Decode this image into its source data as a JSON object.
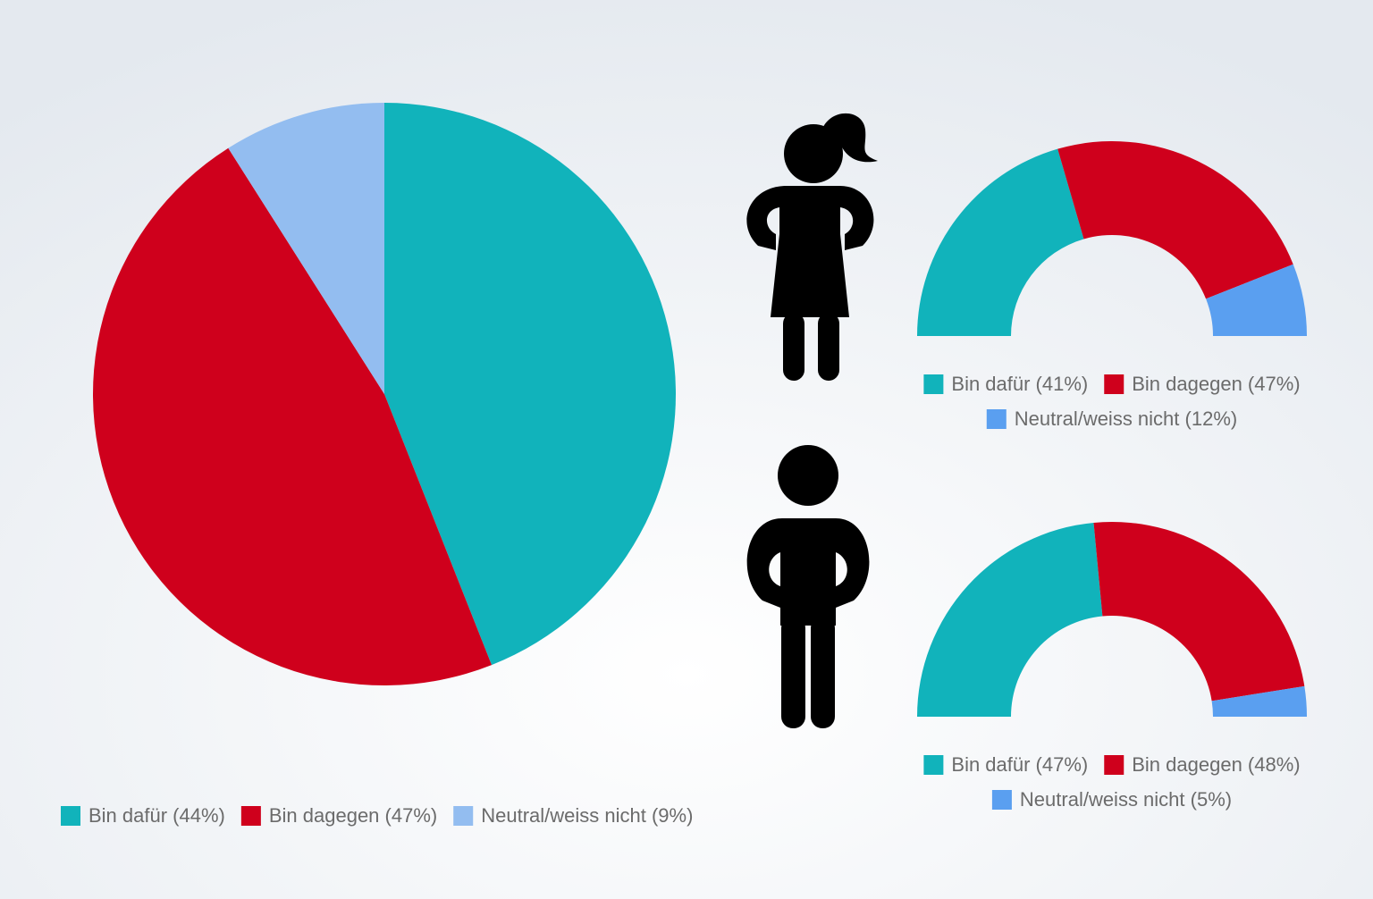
{
  "chart_data": [
    {
      "type": "pie",
      "categories": [
        "Bin dafür (44%)",
        "Bin dagegen (47%)",
        "Neutral/weiss nicht (9%)"
      ],
      "values": [
        44,
        47,
        9
      ],
      "colors": [
        "#11b3bb",
        "#cf001c",
        "#93bdf0"
      ]
    },
    {
      "type": "semi-donut",
      "categories": [
        "Bin dafür (41%)",
        "Bin dagegen (47%)",
        "Neutral/weiss nicht (12%)"
      ],
      "values": [
        41,
        47,
        12
      ],
      "colors": [
        "#11b3bb",
        "#cf001c",
        "#5a9ff0"
      ]
    },
    {
      "type": "semi-donut",
      "categories": [
        "Bin dafür (47%)",
        "Bin dagegen (48%)",
        "Neutral/weiss nicht (5%)"
      ],
      "values": [
        47,
        48,
        5
      ],
      "colors": [
        "#11b3bb",
        "#cf001c",
        "#5a9ff0"
      ]
    }
  ]
}
